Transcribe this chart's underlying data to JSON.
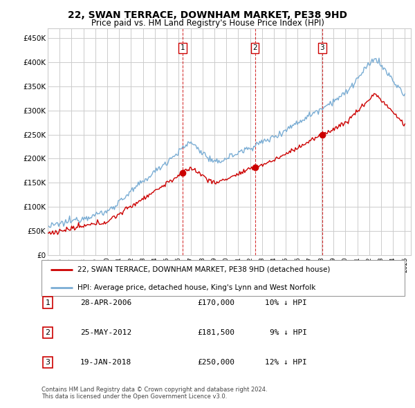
{
  "title": "22, SWAN TERRACE, DOWNHAM MARKET, PE38 9HD",
  "subtitle": "Price paid vs. HM Land Registry's House Price Index (HPI)",
  "ytick_values": [
    0,
    50000,
    100000,
    150000,
    200000,
    250000,
    300000,
    350000,
    400000,
    450000
  ],
  "ylim": [
    0,
    470000
  ],
  "xlim_start": 1995.0,
  "xlim_end": 2025.5,
  "sale_color": "#cc0000",
  "hpi_color": "#7aadd4",
  "vline_color": "#cc0000",
  "grid_color": "#cccccc",
  "background_color": "#ffffff",
  "sales": [
    {
      "year": 2006.32,
      "price": 170000,
      "label": "1"
    },
    {
      "year": 2012.4,
      "price": 181500,
      "label": "2"
    },
    {
      "year": 2018.05,
      "price": 250000,
      "label": "3"
    }
  ],
  "legend_sale_label": "22, SWAN TERRACE, DOWNHAM MARKET, PE38 9HD (detached house)",
  "legend_hpi_label": "HPI: Average price, detached house, King's Lynn and West Norfolk",
  "table_rows": [
    {
      "num": "1",
      "date": "28-APR-2006",
      "price": "£170,000",
      "pct": "10% ↓ HPI"
    },
    {
      "num": "2",
      "date": "25-MAY-2012",
      "price": "£181,500",
      "pct": "9% ↓ HPI"
    },
    {
      "num": "3",
      "date": "19-JAN-2018",
      "price": "£250,000",
      "pct": "12% ↓ HPI"
    }
  ],
  "footnote": "Contains HM Land Registry data © Crown copyright and database right 2024.\nThis data is licensed under the Open Government Licence v3.0."
}
